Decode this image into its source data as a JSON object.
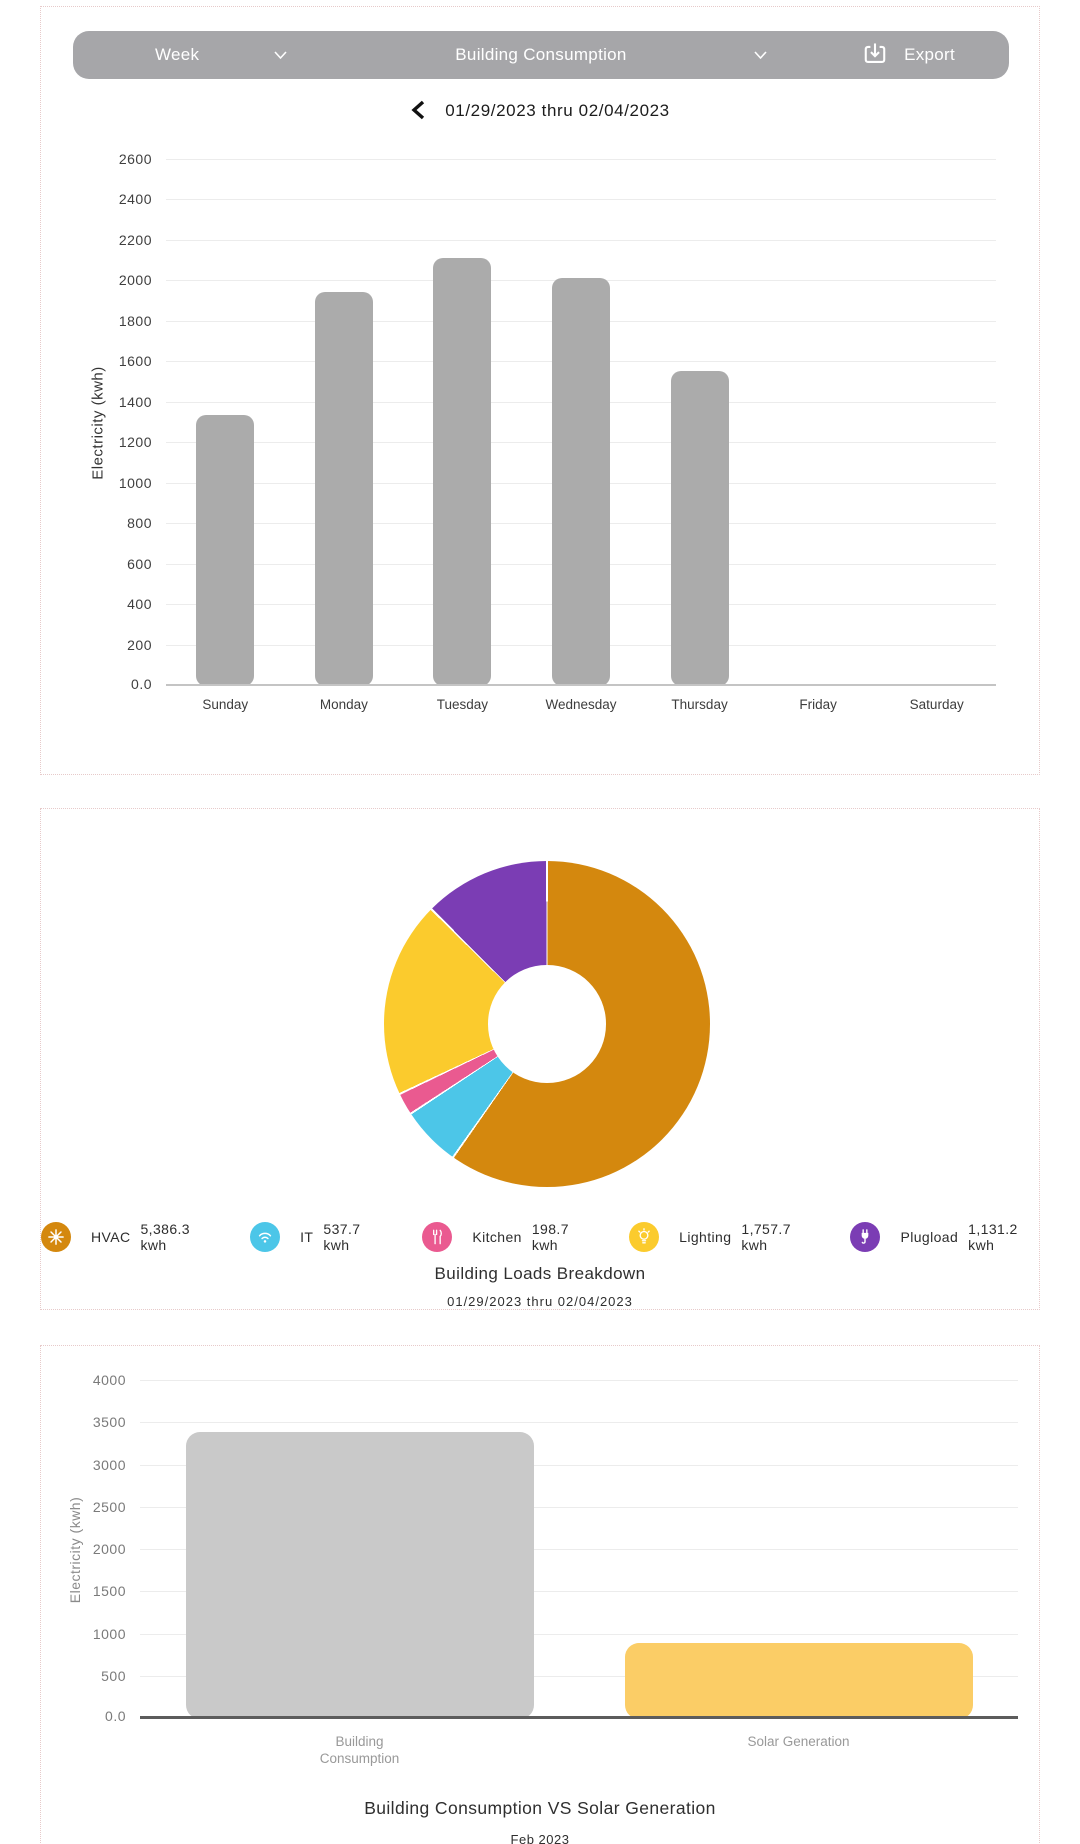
{
  "toolbar": {
    "period_label": "Week",
    "metric_label": "Building Consumption",
    "export_label": "Export"
  },
  "date_nav": {
    "range": "01/29/2023 thru 02/04/2023"
  },
  "chart_data": [
    {
      "id": "weekly-consumption",
      "type": "bar",
      "title": "",
      "xlabel": "",
      "ylabel": "Electricity (kwh)",
      "categories": [
        "Sunday",
        "Monday",
        "Tuesday",
        "Wednesday",
        "Thursday",
        "Friday",
        "Saturday"
      ],
      "values": [
        1340,
        1950,
        2115,
        2015,
        1555,
        0,
        0
      ],
      "ylim": [
        0,
        2600
      ],
      "ytick_step": 200,
      "zero_tick_label": "0.0",
      "grid": true,
      "bar_color": "#ababab"
    },
    {
      "id": "building-loads",
      "type": "pie",
      "title": "Building Loads Breakdown",
      "subtitle": "01/29/2023 thru 02/04/2023",
      "donut_hole": true,
      "start_angle_deg": 0,
      "direction": "clockwise",
      "legend_position": "bottom",
      "slices": [
        {
          "label": "HVAC",
          "value": 5386.3,
          "display": "5,386.3 kwh",
          "color": "#d4880e",
          "icon": "fan-icon"
        },
        {
          "label": "IT",
          "value": 537.7,
          "display": "537.7 kwh",
          "color": "#4cc6e8",
          "icon": "wifi-icon"
        },
        {
          "label": "Kitchen",
          "value": 198.7,
          "display": "198.7 kwh",
          "color": "#ea5a90",
          "icon": "cutlery-icon"
        },
        {
          "label": "Lighting",
          "value": 1757.7,
          "display": "1,757.7 kwh",
          "color": "#fbcb2d",
          "icon": "bulb-icon"
        },
        {
          "label": "Plugload",
          "value": 1131.2,
          "display": "1,131.2 kwh",
          "color": "#7b3db4",
          "icon": "plug-icon"
        }
      ]
    },
    {
      "id": "consumption-vs-solar",
      "type": "bar",
      "title": "Building Consumption VS Solar Generation",
      "subtitle": "Feb 2023",
      "xlabel": "",
      "ylabel": "Electricity (kwh)",
      "categories": [
        "Building Consumption",
        "Solar Generation"
      ],
      "values": [
        3400,
        895
      ],
      "colors": [
        "#c9c9c9",
        "#fbcd66"
      ],
      "ylim": [
        0,
        4000
      ],
      "ytick_step": 500,
      "zero_tick_label": "0.0",
      "grid": true
    }
  ]
}
